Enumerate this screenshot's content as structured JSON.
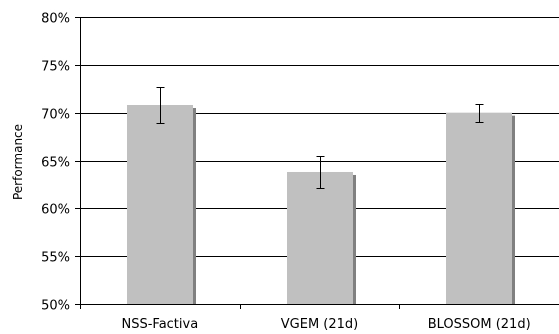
{
  "chart_data": {
    "type": "bar",
    "title": "",
    "xlabel": "",
    "ylabel": "Performance",
    "categories": [
      "NSS-Factiva",
      "VGEM (21d)",
      "BLOSSOM (21d)"
    ],
    "values": [
      70.8,
      63.8,
      70.0
    ],
    "error_low": [
      68.9,
      62.1,
      69.0
    ],
    "error_high": [
      72.7,
      65.5,
      70.9
    ],
    "ylim": [
      50,
      80
    ],
    "yticks": [
      50,
      55,
      60,
      65,
      70,
      75,
      80
    ],
    "ytick_labels": [
      "50%",
      "55%",
      "60%",
      "65%",
      "70%",
      "75%",
      "80%"
    ],
    "grid": true,
    "legend": "none",
    "colors": {
      "bar": "#c0c0c0",
      "bar_shadow": "#808080",
      "grid": "#000000",
      "axis": "#000000",
      "error_bar": "#000000"
    }
  }
}
